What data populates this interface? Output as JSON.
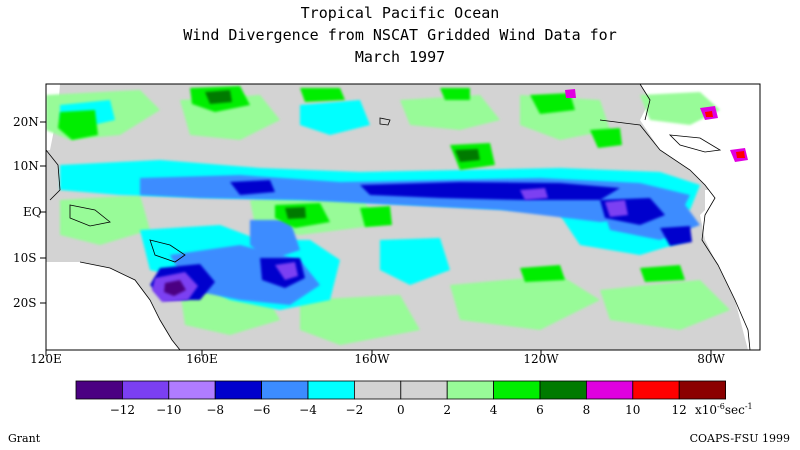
{
  "title": {
    "line1": "Tropical Pacific Ocean",
    "line2": "Wind Divergence from NSCAT Gridded Wind Data for",
    "line3": "March 1997"
  },
  "map": {
    "lat_labels": [
      "20N",
      "10N",
      "EQ",
      "10S",
      "20S"
    ],
    "lon_labels": [
      "120E",
      "160E",
      "160W",
      "120W",
      "80W"
    ]
  },
  "colorbar": {
    "colors": [
      "#4b0082",
      "#7b3ff2",
      "#b07cff",
      "#0000cd",
      "#3c8cff",
      "#00ffff",
      "#d3d3d3",
      "#d3d3d3",
      "#98fb98",
      "#00ee00",
      "#007a00",
      "#e000e0",
      "#ff0000",
      "#8b0000"
    ],
    "labels": [
      "-12",
      "-10",
      "-8",
      "-6",
      "-4",
      "-2",
      "0",
      "2",
      "4",
      "6",
      "8",
      "10",
      "12"
    ],
    "units_prefix": "x10",
    "units_exp": "-6",
    "units_suffix": "sec",
    "units_suffix_exp": "-1"
  },
  "footer": {
    "left": "Grant",
    "right": "COAPS-FSU 1999"
  }
}
